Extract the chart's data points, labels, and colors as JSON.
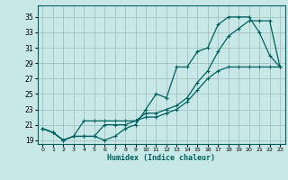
{
  "xlabel": "Humidex (Indice chaleur)",
  "background_color": "#c8e8e8",
  "grid_color": "#a8c8c8",
  "line_color": "#006060",
  "x_ticks": [
    0,
    1,
    2,
    3,
    4,
    5,
    6,
    7,
    8,
    9,
    10,
    11,
    12,
    13,
    14,
    15,
    16,
    17,
    18,
    19,
    20,
    21,
    22,
    23
  ],
  "y_ticks": [
    19,
    21,
    23,
    25,
    27,
    29,
    31,
    33,
    35
  ],
  "xlim": [
    -0.5,
    23.5
  ],
  "ylim": [
    18.5,
    36.5
  ],
  "line1_x": [
    0,
    1,
    2,
    3,
    4,
    5,
    6,
    7,
    8,
    9,
    10,
    11,
    12,
    13,
    14,
    15,
    16,
    17,
    18,
    19,
    20,
    21,
    22,
    23
  ],
  "line1_y": [
    20.5,
    20.0,
    19.0,
    19.5,
    19.5,
    19.5,
    19.0,
    19.5,
    20.5,
    21.0,
    23.0,
    25.0,
    24.5,
    28.5,
    28.5,
    30.5,
    31.0,
    34.0,
    35.0,
    35.0,
    35.0,
    33.0,
    30.0,
    28.5
  ],
  "line2_x": [
    0,
    1,
    2,
    3,
    4,
    5,
    6,
    7,
    8,
    9,
    10,
    11,
    12,
    13,
    14,
    15,
    16,
    17,
    18,
    19,
    20,
    21,
    22,
    23
  ],
  "line2_y": [
    20.5,
    20.0,
    19.0,
    19.5,
    21.5,
    21.5,
    21.5,
    21.5,
    21.5,
    21.5,
    22.5,
    22.5,
    23.0,
    23.5,
    24.5,
    26.5,
    28.0,
    30.5,
    32.5,
    33.5,
    34.5,
    34.5,
    34.5,
    28.5
  ],
  "line3_x": [
    0,
    1,
    2,
    3,
    4,
    5,
    6,
    7,
    8,
    9,
    10,
    11,
    12,
    13,
    14,
    15,
    16,
    17,
    18,
    19,
    20,
    21,
    22,
    23
  ],
  "line3_y": [
    20.5,
    20.0,
    19.0,
    19.5,
    19.5,
    19.5,
    21.0,
    21.0,
    21.0,
    21.5,
    22.0,
    22.0,
    22.5,
    23.0,
    24.0,
    25.5,
    27.0,
    28.0,
    28.5,
    28.5,
    28.5,
    28.5,
    28.5,
    28.5
  ]
}
